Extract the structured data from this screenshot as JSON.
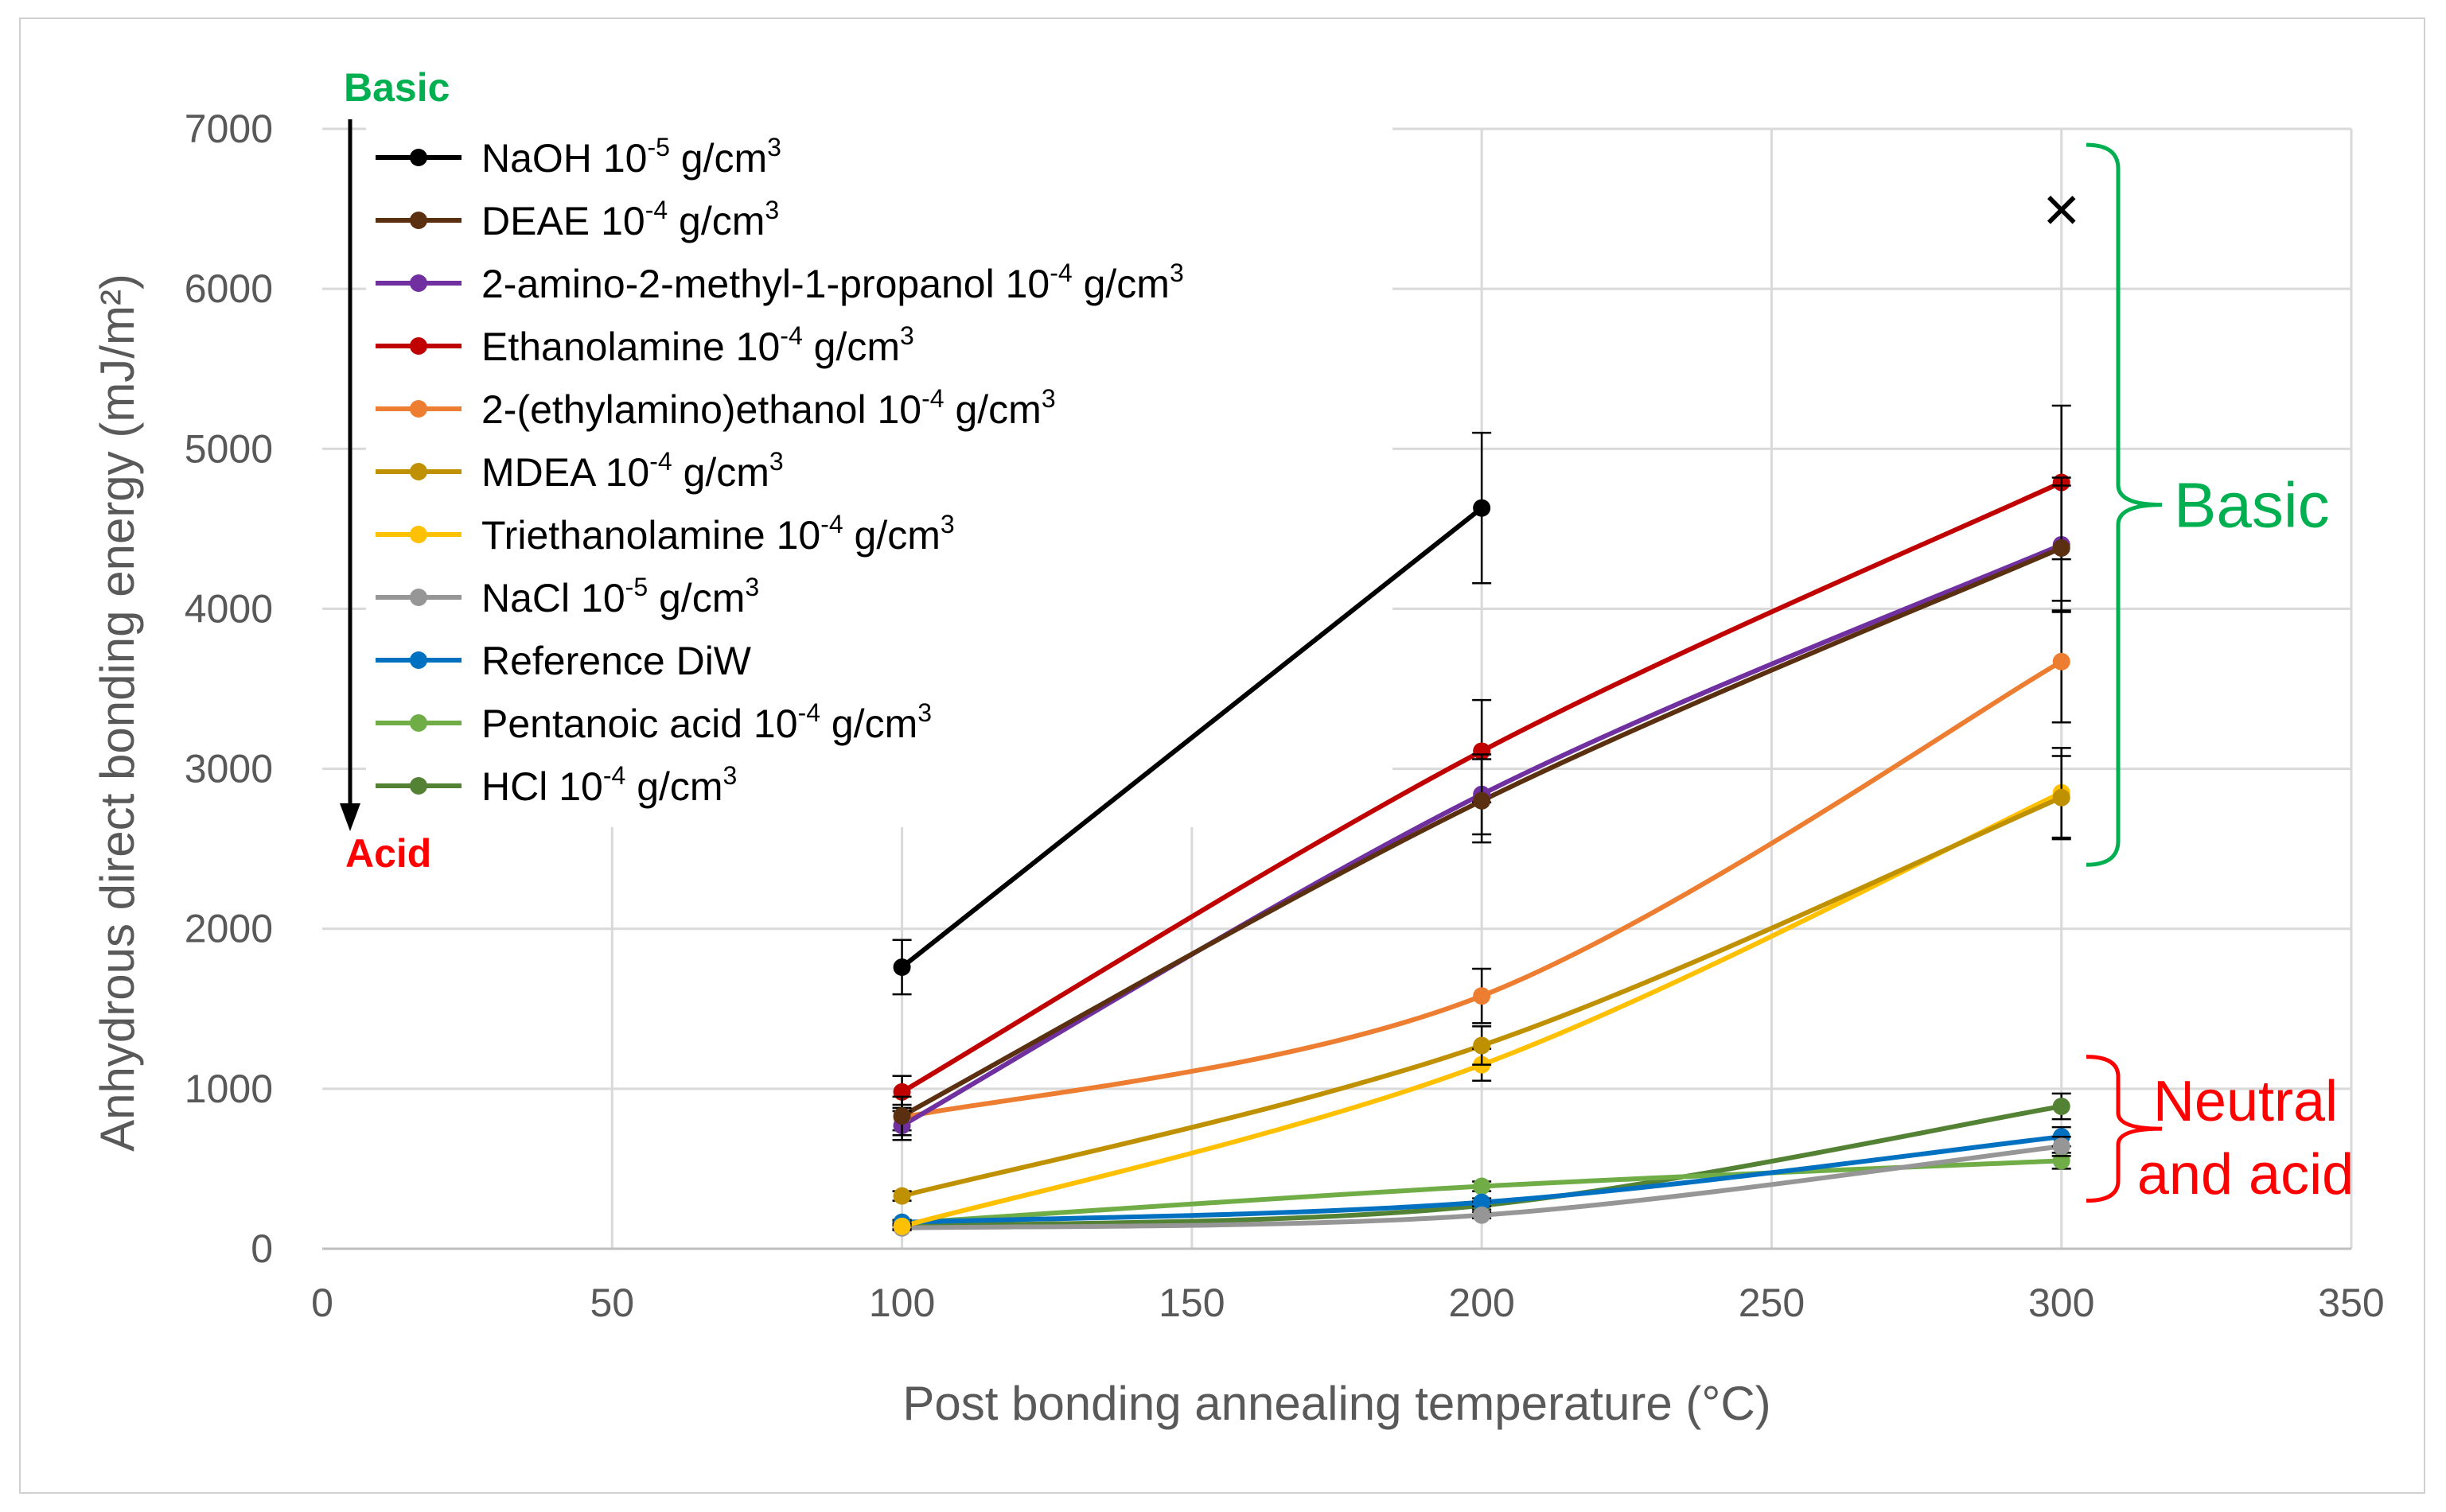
{
  "chart_data": {
    "type": "line",
    "title": "",
    "xlabel": "Post bonding annealing temperature (°C)",
    "ylabel": "Anhydrous direct bonding energy (mJ/m²)",
    "xlim": [
      0,
      350
    ],
    "ylim": [
      0,
      7000
    ],
    "xticks": [
      0,
      50,
      100,
      150,
      200,
      250,
      300,
      350
    ],
    "yticks": [
      0,
      1000,
      2000,
      3000,
      4000,
      5000,
      6000,
      7000
    ],
    "grid": true,
    "legend_position": "top-left",
    "series": [
      {
        "name": "NaOH",
        "conc_base": "10",
        "conc_exp": "-5",
        "unit": "g/cm",
        "unit_exp": "3",
        "color": "#000000",
        "x": [
          100,
          200
        ],
        "y": [
          1760,
          4630
        ],
        "err": [
          170,
          470
        ]
      },
      {
        "name": "DEAE",
        "conc_base": "10",
        "conc_exp": "-4",
        "unit": "g/cm",
        "unit_exp": "3",
        "color": "#5a3010",
        "x": [
          100,
          200,
          300
        ],
        "y": [
          830,
          2800,
          4380
        ],
        "err": [
          120,
          260,
          390
        ]
      },
      {
        "name": "2-amino-2-methyl-1-propanol",
        "conc_base": "10",
        "conc_exp": "-4",
        "unit": "g/cm",
        "unit_exp": "3",
        "color": "#7030a0",
        "x": [
          100,
          200,
          300
        ],
        "y": [
          770,
          2840,
          4400
        ],
        "err": [
          90,
          250,
          420
        ]
      },
      {
        "name": "Ethanolamine",
        "conc_base": "10",
        "conc_exp": "-4",
        "unit": "g/cm",
        "unit_exp": "3",
        "color": "#c00000",
        "x": [
          100,
          200,
          300
        ],
        "y": [
          980,
          3110,
          4790
        ],
        "err": [
          100,
          320,
          480
        ]
      },
      {
        "name": "2-(ethylamino)ethanol",
        "conc_base": "10",
        "conc_exp": "-4",
        "unit": "g/cm",
        "unit_exp": "3",
        "color": "#ed7d31",
        "x": [
          100,
          200,
          300
        ],
        "y": [
          820,
          1580,
          3670
        ],
        "err": [
          80,
          170,
          380
        ]
      },
      {
        "name": "MDEA",
        "conc_base": "10",
        "conc_exp": "-4",
        "unit": "g/cm",
        "unit_exp": "3",
        "color": "#bf9000",
        "x": [
          100,
          200,
          300
        ],
        "y": [
          330,
          1270,
          2820
        ],
        "err": [
          30,
          120,
          260
        ]
      },
      {
        "name": "Triethanolamine",
        "conc_base": "10",
        "conc_exp": "-4",
        "unit": "g/cm",
        "unit_exp": "3",
        "color": "#ffc000",
        "x": [
          100,
          200,
          300
        ],
        "y": [
          140,
          1150,
          2850
        ],
        "err": [
          20,
          100,
          280
        ]
      },
      {
        "name": "NaCl",
        "conc_base": "10",
        "conc_exp": "-5",
        "unit": "g/cm",
        "unit_exp": "3",
        "color": "#969696",
        "x": [
          100,
          200,
          300
        ],
        "y": [
          130,
          210,
          640
        ],
        "err": [
          15,
          20,
          60
        ]
      },
      {
        "name": "Reference DiW",
        "conc_base": "",
        "conc_exp": "",
        "unit": "",
        "unit_exp": "",
        "color": "#0070c0",
        "x": [
          100,
          200,
          300
        ],
        "y": [
          165,
          290,
          700
        ],
        "err": [
          15,
          25,
          60
        ]
      },
      {
        "name": "Pentanoic acid",
        "conc_base": "10",
        "conc_exp": "-4",
        "unit": "g/cm",
        "unit_exp": "3",
        "color": "#70ad47",
        "x": [
          100,
          200,
          300
        ],
        "y": [
          160,
          390,
          550
        ],
        "err": [
          15,
          30,
          50
        ]
      },
      {
        "name": "HCl",
        "conc_base": "10",
        "conc_exp": "-4",
        "unit": "g/cm",
        "unit_exp": "3",
        "color": "#548235",
        "x": [
          100,
          200,
          300
        ],
        "y": [
          140,
          270,
          890
        ],
        "err": [
          15,
          25,
          80
        ]
      }
    ],
    "marker_x": {
      "x": 300,
      "y": 6500,
      "symbol": "×",
      "color": "#000000"
    },
    "annotations": {
      "arrow_top_label": "Basic",
      "arrow_bottom_label": "Acid",
      "arrow_top_color": "#00b050",
      "arrow_bottom_color": "#ff0000",
      "bracket_basic": {
        "label": "Basic",
        "color": "#00b050",
        "y_from": 2400,
        "y_to": 6900
      },
      "bracket_neutral": {
        "label_line1": "Neutral",
        "label_line2": "and acid",
        "color": "#ff0000",
        "y_from": 300,
        "y_to": 1200
      }
    }
  }
}
